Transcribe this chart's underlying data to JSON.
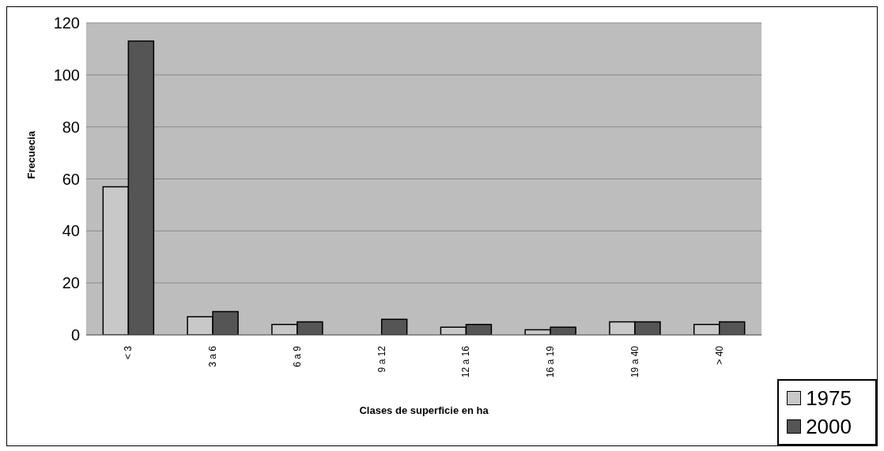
{
  "chart_data": {
    "type": "bar",
    "xlabel": "Clases de superficie en ha",
    "ylabel": "Frecuecia",
    "categories": [
      "< 3",
      "3 a 6",
      "6 a 9",
      "9 a 12",
      "12 a 16",
      "16 a 19",
      "19 a 40",
      "> 40"
    ],
    "series": [
      {
        "name": "1975",
        "color": "#c8c8c8",
        "values": [
          57,
          7,
          4,
          0,
          3,
          2,
          5,
          4
        ]
      },
      {
        "name": "2000",
        "color": "#555555",
        "values": [
          113,
          9,
          5,
          6,
          4,
          3,
          5,
          5
        ]
      }
    ],
    "ylim": [
      0,
      120
    ],
    "yticks": [
      0,
      20,
      40,
      60,
      80,
      100,
      120
    ],
    "grid": "y",
    "legend": "bottom right"
  }
}
